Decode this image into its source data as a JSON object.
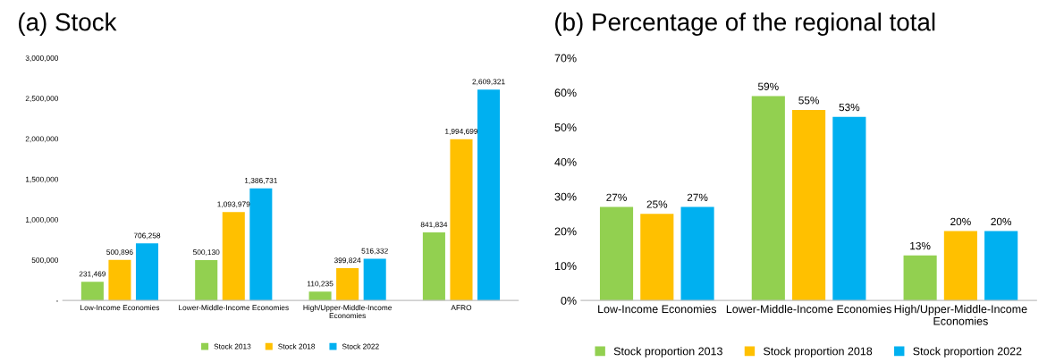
{
  "chart_data": [
    {
      "type": "bar",
      "title": "(a) Stock",
      "categories": [
        "Low-Income Economies",
        "Lower-Middle-Income Economies",
        "High/Upper-Middle-Income\nEconomies",
        "AFRO"
      ],
      "series": [
        {
          "name": "Stock 2013",
          "color": "#92d050",
          "values": [
            231469,
            500130,
            110235,
            841834
          ],
          "value_labels": [
            "231,469",
            "500,130",
            "110,235",
            "841,834"
          ]
        },
        {
          "name": "Stock 2018",
          "color": "#ffc000",
          "values": [
            500896,
            1093979,
            399824,
            1994699
          ],
          "value_labels": [
            "500,896",
            "1,093,979",
            "399,824",
            "1,994,699"
          ]
        },
        {
          "name": "Stock 2022",
          "color": "#00b0f0",
          "values": [
            706258,
            1386731,
            516332,
            2609321
          ],
          "value_labels": [
            "706,258",
            "1,386,731",
            "516,332",
            "2,609,321"
          ]
        }
      ],
      "ylim": [
        0,
        3000000
      ],
      "yticks": [
        {
          "value": 0,
          "label": "-"
        },
        {
          "value": 500000,
          "label": "500,000"
        },
        {
          "value": 1000000,
          "label": "1,000,000"
        },
        {
          "value": 1500000,
          "label": "1,500,000"
        },
        {
          "value": 2000000,
          "label": "2,000,000"
        },
        {
          "value": 2500000,
          "label": "2,500,000"
        },
        {
          "value": 3000000,
          "label": "3,000,000"
        }
      ],
      "grid": false,
      "legend": "bottom"
    },
    {
      "type": "bar",
      "title": "(b) Percentage of the regional total",
      "categories": [
        "Low-Income Economies",
        "Lower-Middle-Income Economies",
        "High/Upper-Middle-Income\nEconomies"
      ],
      "series": [
        {
          "name": "Stock proportion 2013",
          "color": "#92d050",
          "values": [
            27,
            59,
            13
          ],
          "value_labels": [
            "27%",
            "59%",
            "13%"
          ]
        },
        {
          "name": "Stock proportion 2018",
          "color": "#ffc000",
          "values": [
            25,
            55,
            20
          ],
          "value_labels": [
            "25%",
            "55%",
            "20%"
          ]
        },
        {
          "name": "Stock proportion 2022",
          "color": "#00b0f0",
          "values": [
            27,
            53,
            20
          ],
          "value_labels": [
            "27%",
            "53%",
            "20%"
          ]
        }
      ],
      "ylim": [
        0,
        70
      ],
      "yticks": [
        {
          "value": 0,
          "label": "0%"
        },
        {
          "value": 10,
          "label": "10%"
        },
        {
          "value": 20,
          "label": "20%"
        },
        {
          "value": 30,
          "label": "30%"
        },
        {
          "value": 40,
          "label": "40%"
        },
        {
          "value": 50,
          "label": "50%"
        },
        {
          "value": 60,
          "label": "60%"
        },
        {
          "value": 70,
          "label": "70%"
        }
      ],
      "grid": false,
      "legend": "bottom"
    }
  ]
}
